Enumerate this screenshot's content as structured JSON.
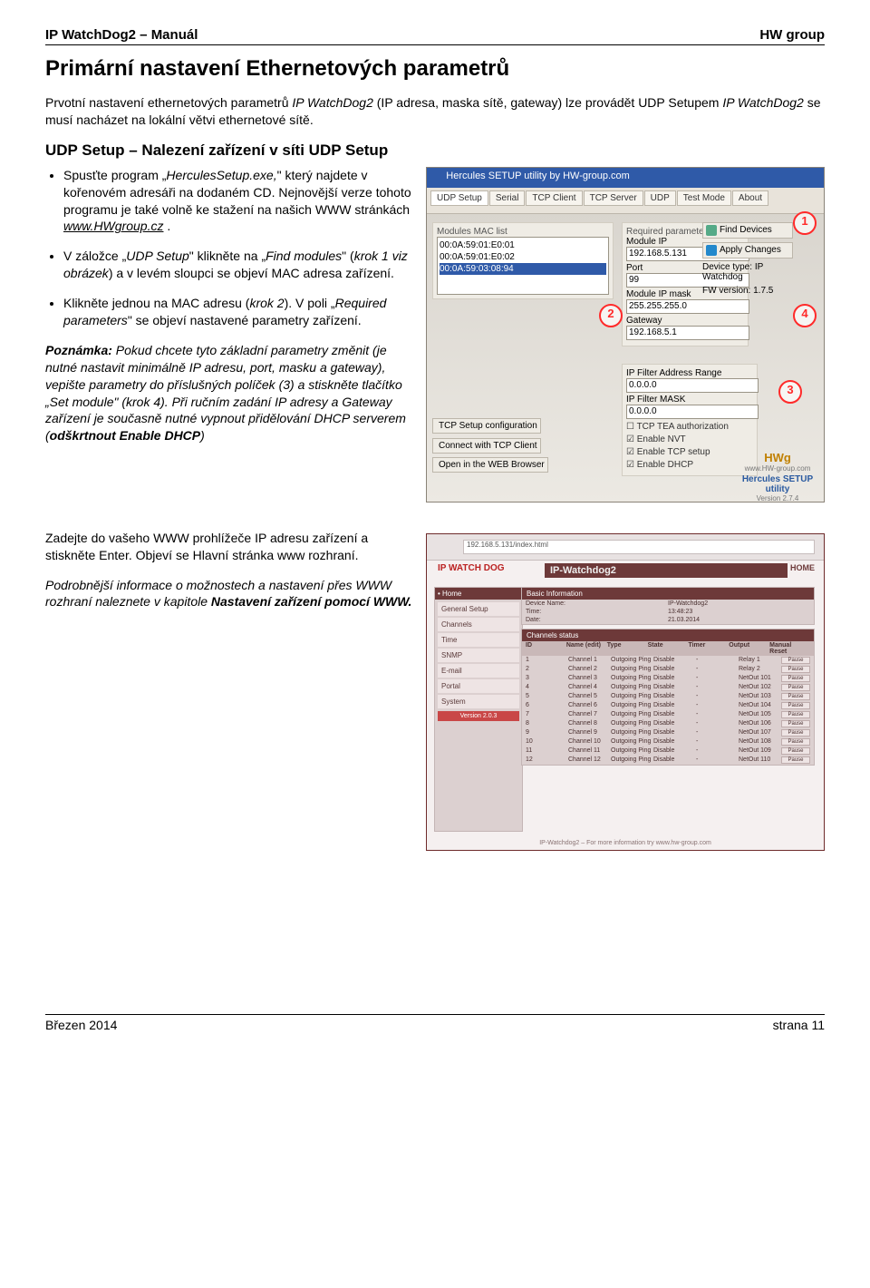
{
  "header": {
    "left": "IP WatchDog2 – Manuál",
    "right": "HW group"
  },
  "h1": "Primární nastavení Ethernetových parametrů",
  "intro": {
    "p1a": "Prvotní nastavení ethernetových parametrů ",
    "p1b": "IP WatchDog2",
    "p1c": " (IP adresa, maska sítě, gateway) lze provádět UDP Setupem ",
    "p1d": "IP WatchDog2",
    "p1e": " se musí nacházet na lokální větvi ethernetové sítě."
  },
  "h2": "UDP Setup – Nalezení zařízení v síti UDP Setup",
  "bullets": {
    "b1a": "Spusťte program „",
    "b1b": "HerculesSetup.exe,",
    "b1c": "\" který najdete v kořenovém adresáři na dodaném CD. Nejnovější verze tohoto programu je také volně ke stažení na našich WWW stránkách ",
    "b1d": "www.HWgroup.cz",
    "b1e": " .",
    "b2a": "V záložce „",
    "b2b": "UDP Setup",
    "b2c": "\" klikněte na „",
    "b2d": "Find modules",
    "b2e": "\" (",
    "b2f": "krok 1 viz obrázek",
    "b2g": ") a v levém sloupci se objeví MAC adresa zařízení.",
    "b3a": "Klikněte jednou na MAC adresu (",
    "b3b": "krok 2",
    "b3c": "). V poli „",
    "b3d": "Required parameters",
    "b3e": "\" se objeví nastavené parametry zařízení."
  },
  "note": {
    "t0": "Poznámka:",
    "t1": " Pokud chcete tyto základní parametry změnit (je nutné nastavit minimálně IP adresu, port, masku a gateway), vepište parametry do příslušných políček (3) a stiskněte tlačítko „Set module\" (krok 4). Při ručním zadání IP adresy a Gateway zařízení je současně nutné vypnout přidělování DHCP serverem (",
    "t2": "odškrtnout Enable DHCP",
    "t3": ")"
  },
  "section2": {
    "p1": "Zadejte do vašeho WWW prohlížeče IP adresu zařízení a stiskněte Enter. Objeví se Hlavní stránka www rozhraní.",
    "p2a": "Podrobnější informace o možnostech a nastavení přes WWW rozhraní naleznete v kapitole ",
    "p2b": "Nastavení zařízení pomocí WWW.",
    "p2c": ""
  },
  "footer": {
    "left": "Březen 2014",
    "right": "strana 11"
  },
  "shot1": {
    "title": "Hercules SETUP utility by HW-group.com",
    "tabs": [
      "UDP Setup",
      "Serial",
      "TCP Client",
      "TCP Server",
      "UDP",
      "Test Mode",
      "About"
    ],
    "maclist_label": "Modules MAC list",
    "macs": [
      "00:0A:59:01:E0:01",
      "00:0A:59:01:E0:02",
      "00:0A:59:03:08:94"
    ],
    "req_label": "Required parameters",
    "fields": {
      "moduleip_l": "Module IP",
      "moduleip_v": "192.168.5.131",
      "port_l": "Port",
      "port_v": "99",
      "mask_l": "Module IP mask",
      "mask_v": "255.255.255.0",
      "gw_l": "Gateway",
      "gw_v": "192.168.5.1"
    },
    "btn_find": "Find Devices",
    "btn_apply": "Apply Changes",
    "devtype_l": "Device type:",
    "devtype_v": "IP Watchdog",
    "fwver_l": "FW version:",
    "fwver_v": "1.7.5",
    "range_label": "IP Filter Address Range",
    "range_from": "0.0.0.0",
    "mask_filter_l": "IP Filter MASK",
    "mask_filter_v": "0.0.0.0",
    "ck1": "TCP TEA authorization",
    "ck2": "Enable NVT",
    "ck3": "Enable TCP setup",
    "ck4": "Enable DHCP",
    "btn_tcp": "TCP Setup configuration",
    "btn_conn": "Connect with TCP Client",
    "btn_web": "Open in the WEB Browser",
    "logo_brand": "HWg",
    "logo_sub": "www.HW-group.com",
    "logo_util": "Hercules SETUP utility",
    "logo_ver": "Version 2.7.4",
    "badges": {
      "1": "1",
      "2": "2",
      "3": "3",
      "4": "4"
    }
  },
  "shot2": {
    "addr": "192.168.5.131/index.html",
    "logo": "IP WATCH DOG",
    "title": "IP-Watchdog2",
    "home": "HOME",
    "side_hdr": "• Home",
    "side_items": [
      "General Setup",
      "Channels",
      "Time",
      "SNMP",
      "E-mail",
      "Portal",
      "System"
    ],
    "side_ver": "Version 2.0.3",
    "panel1_hdr": "Basic Information",
    "panel1_rows": [
      [
        "Device Name:",
        "IP-Watchdog2"
      ],
      [
        "Time:",
        "13:48:23"
      ],
      [
        "Date:",
        "21.03.2014"
      ]
    ],
    "panel2_hdr": "Channels status",
    "panel2_cols": [
      "ID",
      "Name (edit)",
      "Type",
      "State",
      "Timer",
      "Output",
      "Manual Reset"
    ],
    "panel2_rows": [
      [
        "1",
        "Channel 1",
        "Outgoing Ping",
        "Disable",
        "-",
        "Relay 1",
        "Pause"
      ],
      [
        "2",
        "Channel 2",
        "Outgoing Ping",
        "Disable",
        "-",
        "Relay 2",
        "Pause"
      ],
      [
        "3",
        "Channel 3",
        "Outgoing Ping",
        "Disable",
        "-",
        "NetOut 101",
        "Pause"
      ],
      [
        "4",
        "Channel 4",
        "Outgoing Ping",
        "Disable",
        "-",
        "NetOut 102",
        "Pause"
      ],
      [
        "5",
        "Channel 5",
        "Outgoing Ping",
        "Disable",
        "-",
        "NetOut 103",
        "Pause"
      ],
      [
        "6",
        "Channel 6",
        "Outgoing Ping",
        "Disable",
        "-",
        "NetOut 104",
        "Pause"
      ],
      [
        "7",
        "Channel 7",
        "Outgoing Ping",
        "Disable",
        "-",
        "NetOut 105",
        "Pause"
      ],
      [
        "8",
        "Channel 8",
        "Outgoing Ping",
        "Disable",
        "-",
        "NetOut 106",
        "Pause"
      ],
      [
        "9",
        "Channel 9",
        "Outgoing Ping",
        "Disable",
        "-",
        "NetOut 107",
        "Pause"
      ],
      [
        "10",
        "Channel 10",
        "Outgoing Ping",
        "Disable",
        "-",
        "NetOut 108",
        "Pause"
      ],
      [
        "11",
        "Channel 11",
        "Outgoing Ping",
        "Disable",
        "-",
        "NetOut 109",
        "Pause"
      ],
      [
        "12",
        "Channel 12",
        "Outgoing Ping",
        "Disable",
        "-",
        "NetOut 110",
        "Pause"
      ]
    ],
    "ftr": "IP-Watchdog2 – For more information try www.hw-group.com"
  }
}
